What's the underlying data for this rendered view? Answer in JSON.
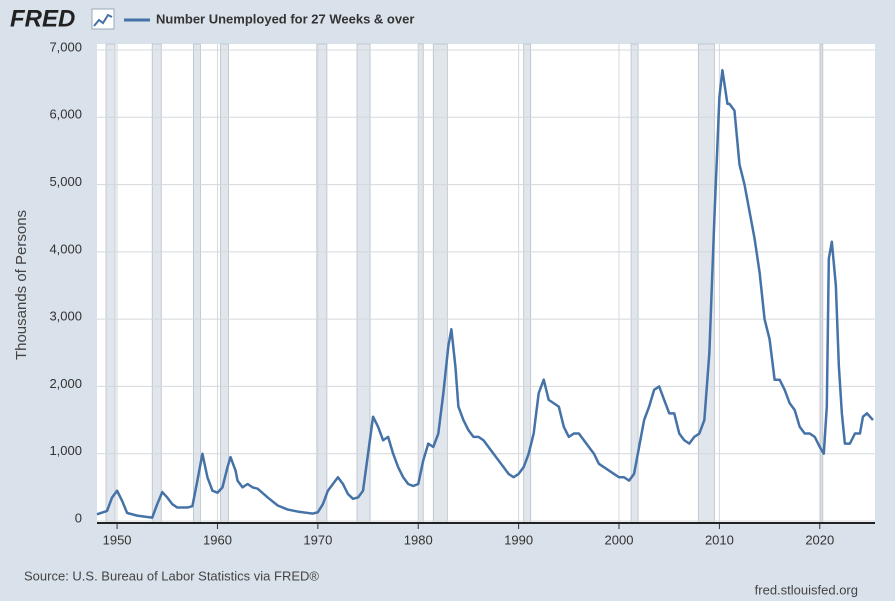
{
  "logo": "FRED",
  "chart_data": {
    "type": "line",
    "y_label": "Thousands of Persons",
    "source": "Source: U.S. Bureau of Labor Statistics via FRED®",
    "url": "fred.stlouisfed.org",
    "xlim": [
      1948,
      2025.5
    ],
    "ylim": [
      0,
      7000
    ],
    "xticks": [
      1950,
      1960,
      1970,
      1980,
      1990,
      2000,
      2010,
      2020
    ],
    "yticks": [
      0,
      {
        "value": 1000,
        "label": "1,000"
      },
      {
        "value": 2000,
        "label": "2,000"
      },
      {
        "value": 3000,
        "label": "3,000"
      },
      {
        "value": 4000,
        "label": "4,000"
      },
      {
        "value": 5000,
        "label": "5,000"
      },
      {
        "value": 6000,
        "label": "6,000"
      },
      {
        "value": 7000,
        "label": "7,000"
      }
    ],
    "grid": true,
    "recession_color": "#e1e6ec",
    "recessions": [
      [
        1948.9,
        1949.8
      ],
      [
        1953.5,
        1954.4
      ],
      [
        1957.6,
        1958.3
      ],
      [
        1960.3,
        1961.1
      ],
      [
        1969.9,
        1970.9
      ],
      [
        1973.9,
        1975.2
      ],
      [
        1980.0,
        1980.5
      ],
      [
        1981.5,
        1982.9
      ],
      [
        1990.5,
        1991.2
      ],
      [
        2001.2,
        2001.9
      ],
      [
        2007.9,
        2009.5
      ],
      [
        2020.1,
        2020.3
      ]
    ],
    "series": [
      {
        "name": "Number Unemployed for 27 Weeks & over",
        "color": "#4572a7",
        "x": [
          1948,
          1949,
          1949.5,
          1950,
          1950.5,
          1951,
          1952,
          1953,
          1953.5,
          1954,
          1954.5,
          1955,
          1955.5,
          1956,
          1957,
          1957.5,
          1958,
          1958.5,
          1959,
          1959.5,
          1960,
          1960.5,
          1961,
          1961.3,
          1961.8,
          1962,
          1962.5,
          1963,
          1963.5,
          1964,
          1965,
          1966,
          1967,
          1968,
          1969,
          1969.5,
          1970,
          1970.5,
          1971,
          1971.5,
          1972,
          1972.5,
          1973,
          1973.5,
          1974,
          1974.5,
          1975,
          1975.5,
          1976,
          1976.5,
          1977,
          1977.5,
          1978,
          1978.5,
          1979,
          1979.5,
          1980,
          1980.5,
          1981,
          1981.5,
          1982,
          1982.5,
          1983,
          1983.3,
          1983.7,
          1984,
          1984.5,
          1985,
          1985.5,
          1986,
          1986.5,
          1987,
          1987.5,
          1988,
          1988.5,
          1989,
          1989.5,
          1990,
          1990.5,
          1991,
          1991.5,
          1992,
          1992.5,
          1993,
          1993.5,
          1994,
          1994.5,
          1995,
          1995.5,
          1996,
          1996.5,
          1997,
          1997.5,
          1998,
          1998.5,
          1999,
          1999.5,
          2000,
          2000.5,
          2001,
          2001.5,
          2002,
          2002.5,
          2003,
          2003.5,
          2004,
          2004.5,
          2005,
          2005.5,
          2006,
          2006.5,
          2007,
          2007.5,
          2008,
          2008.5,
          2009,
          2009.5,
          2010,
          2010.3,
          2010.8,
          2011,
          2011.5,
          2012,
          2012.5,
          2013,
          2013.5,
          2014,
          2014.5,
          2015,
          2015.5,
          2016,
          2016.5,
          2017,
          2017.5,
          2018,
          2018.5,
          2019,
          2019.5,
          2020,
          2020.4,
          2020.7,
          2020.9,
          2021.2,
          2021.6,
          2021.9,
          2022.2,
          2022.5,
          2023,
          2023.5,
          2024,
          2024.3,
          2024.7,
          2025.3
        ],
        "values": [
          100,
          150,
          350,
          450,
          300,
          120,
          80,
          60,
          50,
          250,
          430,
          350,
          250,
          200,
          200,
          220,
          600,
          1000,
          650,
          450,
          420,
          500,
          800,
          950,
          750,
          600,
          500,
          550,
          500,
          480,
          350,
          230,
          170,
          140,
          120,
          110,
          130,
          250,
          450,
          550,
          650,
          550,
          400,
          330,
          350,
          450,
          1000,
          1550,
          1400,
          1200,
          1250,
          1000,
          800,
          650,
          550,
          520,
          550,
          900,
          1150,
          1100,
          1300,
          1900,
          2600,
          2850,
          2300,
          1700,
          1500,
          1350,
          1250,
          1250,
          1200,
          1100,
          1000,
          900,
          800,
          700,
          650,
          700,
          800,
          1000,
          1300,
          1900,
          2100,
          1800,
          1750,
          1700,
          1400,
          1250,
          1300,
          1300,
          1200,
          1100,
          1000,
          850,
          800,
          750,
          700,
          650,
          650,
          600,
          700,
          1100,
          1500,
          1700,
          1950,
          2000,
          1800,
          1600,
          1600,
          1300,
          1200,
          1150,
          1250,
          1300,
          1500,
          2500,
          4500,
          6300,
          6700,
          6200,
          6200,
          6100,
          5300,
          5000,
          4600,
          4200,
          3700,
          3000,
          2700,
          2100,
          2100,
          1950,
          1750,
          1650,
          1400,
          1300,
          1300,
          1250,
          1100,
          1000,
          1700,
          3900,
          4150,
          3500,
          2300,
          1600,
          1150,
          1150,
          1300,
          1300,
          1550,
          1600,
          1500
        ]
      }
    ]
  }
}
